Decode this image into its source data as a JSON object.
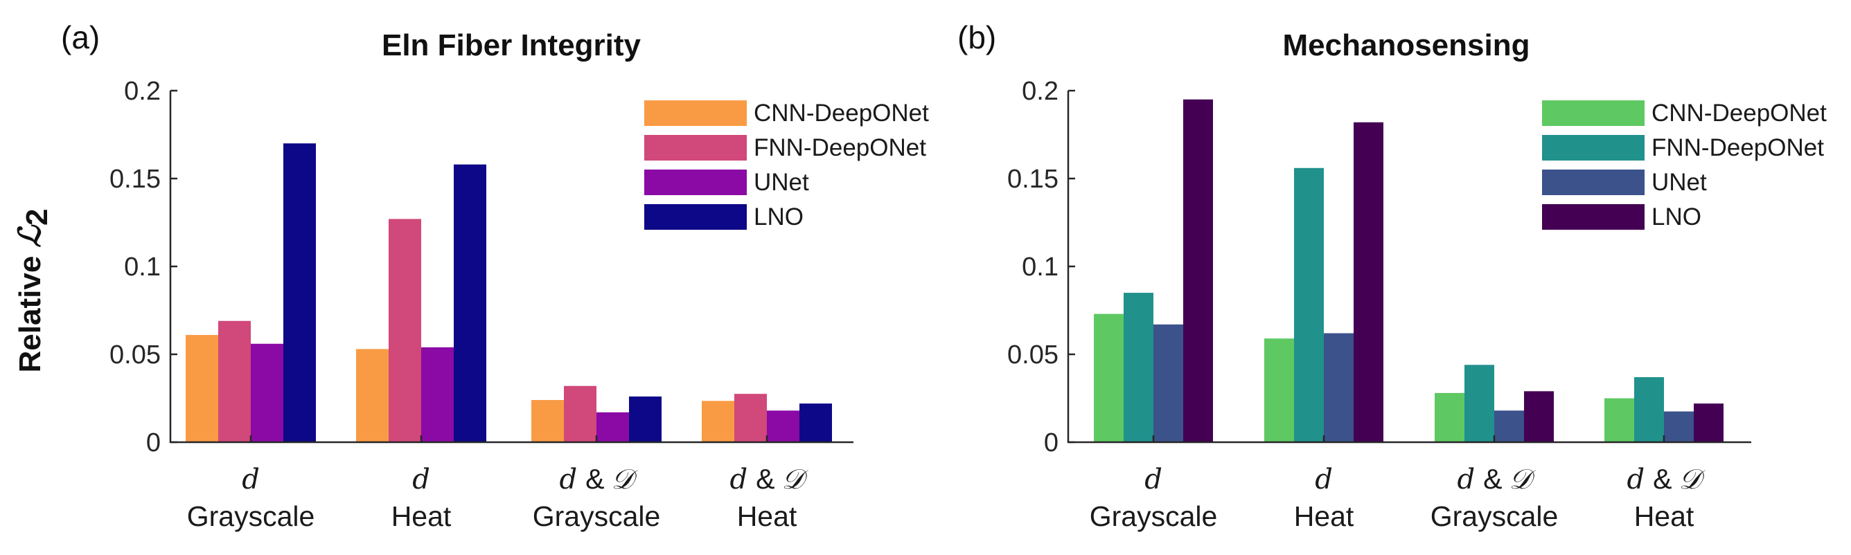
{
  "chart_data": [
    {
      "type": "bar",
      "panel_label": "(a)",
      "title": "Eln Fiber Integrity",
      "ylabel": "Relative",
      "ylabel_symbol": "ℒ",
      "ylabel_subscript": "2",
      "ylim": [
        0,
        0.2
      ],
      "yticks": [
        "0",
        "0.05",
        "0.1",
        "0.15",
        "0.2"
      ],
      "ytick_values": [
        0,
        0.05,
        0.1,
        0.15,
        0.2
      ],
      "categories": [
        {
          "math": "d",
          "amp": "",
          "math2": "",
          "label": "Grayscale"
        },
        {
          "math": "d",
          "amp": "",
          "math2": "",
          "label": "Heat"
        },
        {
          "math": "d",
          "amp": "&",
          "math2": "𝒟",
          "label": "Grayscale"
        },
        {
          "math": "d",
          "amp": "&",
          "math2": "𝒟",
          "label": "Heat"
        }
      ],
      "legend_position": "top-right",
      "series": [
        {
          "name": "CNN-DeepONet",
          "color": "#F99B45",
          "values": [
            0.061,
            0.053,
            0.024,
            0.0235
          ]
        },
        {
          "name": "FNN-DeepONet",
          "color": "#D1487A",
          "values": [
            0.069,
            0.127,
            0.032,
            0.0275
          ]
        },
        {
          "name": "UNet",
          "color": "#8B0AA5",
          "values": [
            0.056,
            0.054,
            0.017,
            0.018
          ]
        },
        {
          "name": "LNO",
          "color": "#0D0887",
          "values": [
            0.17,
            0.158,
            0.026,
            0.022
          ]
        }
      ]
    },
    {
      "type": "bar",
      "panel_label": "(b)",
      "title": "Mechanosensing",
      "ylabel": "",
      "ylabel_symbol": "",
      "ylabel_subscript": "",
      "ylim": [
        0,
        0.2
      ],
      "yticks": [
        "0",
        "0.05",
        "0.1",
        "0.15",
        "0.2"
      ],
      "ytick_values": [
        0,
        0.05,
        0.1,
        0.15,
        0.2
      ],
      "categories": [
        {
          "math": "d",
          "amp": "",
          "math2": "",
          "label": "Grayscale"
        },
        {
          "math": "d",
          "amp": "",
          "math2": "",
          "label": "Heat"
        },
        {
          "math": "d",
          "amp": "&",
          "math2": "𝒟",
          "label": "Grayscale"
        },
        {
          "math": "d",
          "amp": "&",
          "math2": "𝒟",
          "label": "Heat"
        }
      ],
      "legend_position": "top-right",
      "series": [
        {
          "name": "CNN-DeepONet",
          "color": "#5EC962",
          "values": [
            0.073,
            0.059,
            0.028,
            0.025
          ]
        },
        {
          "name": "FNN-DeepONet",
          "color": "#21918C",
          "values": [
            0.085,
            0.156,
            0.044,
            0.037
          ]
        },
        {
          "name": "UNet",
          "color": "#3B528B",
          "values": [
            0.067,
            0.062,
            0.018,
            0.0175
          ]
        },
        {
          "name": "LNO",
          "color": "#440154",
          "values": [
            0.195,
            0.182,
            0.029,
            0.022
          ]
        }
      ]
    }
  ]
}
